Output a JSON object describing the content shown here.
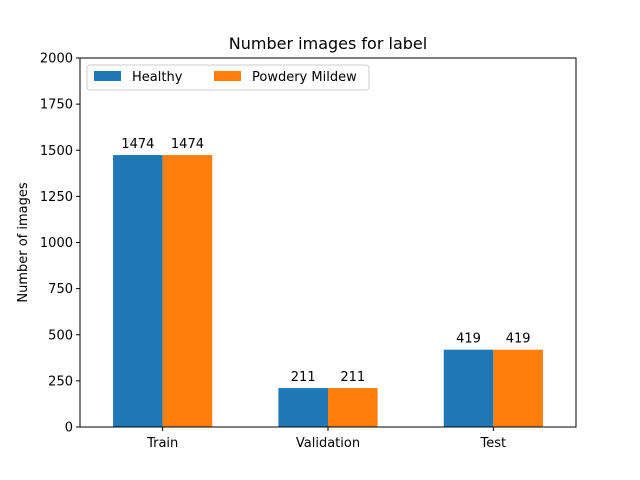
{
  "chart_data": {
    "type": "bar",
    "title": "Number images for label",
    "xlabel": "",
    "ylabel": "Number of images",
    "categories": [
      "Train",
      "Validation",
      "Test"
    ],
    "series": [
      {
        "name": "Healthy",
        "values": [
          1474,
          211,
          419
        ],
        "color": "#1f77b4"
      },
      {
        "name": "Powdery Mildew",
        "values": [
          1474,
          211,
          419
        ],
        "color": "#ff7f0e"
      }
    ],
    "ylim": [
      0,
      2000
    ],
    "yticks": [
      0,
      250,
      500,
      750,
      1000,
      1250,
      1500,
      1750,
      2000
    ],
    "grid": false,
    "legend_position": "top-left",
    "legend_layout": "horizontal",
    "data_labels": true
  }
}
